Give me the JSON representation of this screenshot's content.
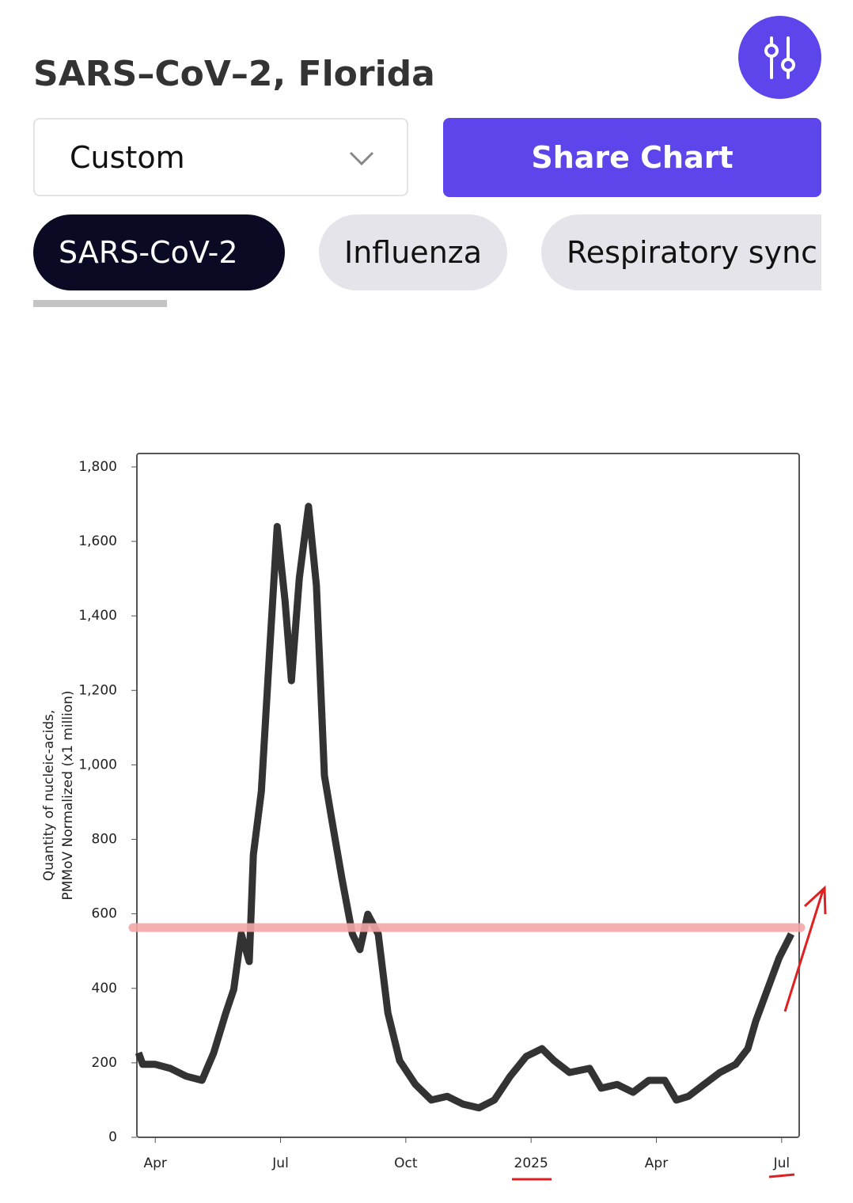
{
  "header": {
    "title": "SARS–CoV–2, Florida"
  },
  "controls": {
    "dropdown": "Custom",
    "share_button": "Share Chart"
  },
  "tabs": [
    "SARS-CoV-2",
    "Influenza",
    "Respiratory sync"
  ],
  "chart_data": {
    "type": "line",
    "y_label": [
      "Quantity of nucleic-acids,",
      "PMMoV Normalized (x1 million)"
    ],
    "x": [
      2.6,
      2.7,
      3.0,
      3.36,
      3.74,
      4.12,
      4.4,
      4.69,
      4.88,
      5.06,
      5.25,
      5.35,
      5.54,
      5.73,
      5.92,
      6.11,
      6.26,
      6.45,
      6.67,
      6.86,
      7.05,
      7.24,
      7.47,
      7.72,
      7.9,
      8.09,
      8.34,
      8.57,
      8.85,
      9.23,
      9.61,
      9.99,
      10.37,
      10.75,
      11.12,
      11.5,
      11.88,
      12.26,
      12.55,
      12.92,
      13.4,
      13.68,
      14.06,
      14.44,
      14.82,
      15.2,
      15.48,
      15.77,
      16.14,
      16.52,
      16.9,
      17.19,
      17.38,
      17.66,
      17.94,
      18.23
    ],
    "values": [
      227,
      196,
      196,
      185,
      164,
      153,
      227,
      334,
      397,
      546,
      472,
      759,
      929,
      1290,
      1640,
      1439,
      1226,
      1502,
      1694,
      1481,
      971,
      844,
      695,
      546,
      504,
      599,
      546,
      334,
      206,
      142,
      100,
      110,
      89,
      79,
      100,
      164,
      217,
      238,
      206,
      174,
      185,
      132,
      142,
      121,
      153,
      153,
      100,
      110,
      142,
      174,
      196,
      238,
      312,
      397,
      482,
      546
    ],
    "color": "#333333",
    "reference_line": {
      "value": 563,
      "color": "#f4a6a6"
    },
    "xlim": [
      2.56,
      18.42
    ],
    "xticks": [
      {
        "value": 3,
        "label": "Apr"
      },
      {
        "value": 6,
        "label": "Jul"
      },
      {
        "value": 9,
        "label": "Oct"
      },
      {
        "value": 12,
        "label": "2025"
      },
      {
        "value": 15,
        "label": "Apr"
      },
      {
        "value": 18,
        "label": "Jul"
      }
    ],
    "ylim": [
      0,
      1836
    ],
    "yticks": [
      0,
      200,
      400,
      600,
      800,
      {
        "value": 1000,
        "label": "1,000"
      },
      {
        "value": 1200,
        "label": "1,200"
      },
      {
        "value": 1400,
        "label": "1,400"
      },
      {
        "value": 1600,
        "label": "1,600"
      },
      {
        "value": 1800,
        "label": "1,800"
      }
    ]
  }
}
